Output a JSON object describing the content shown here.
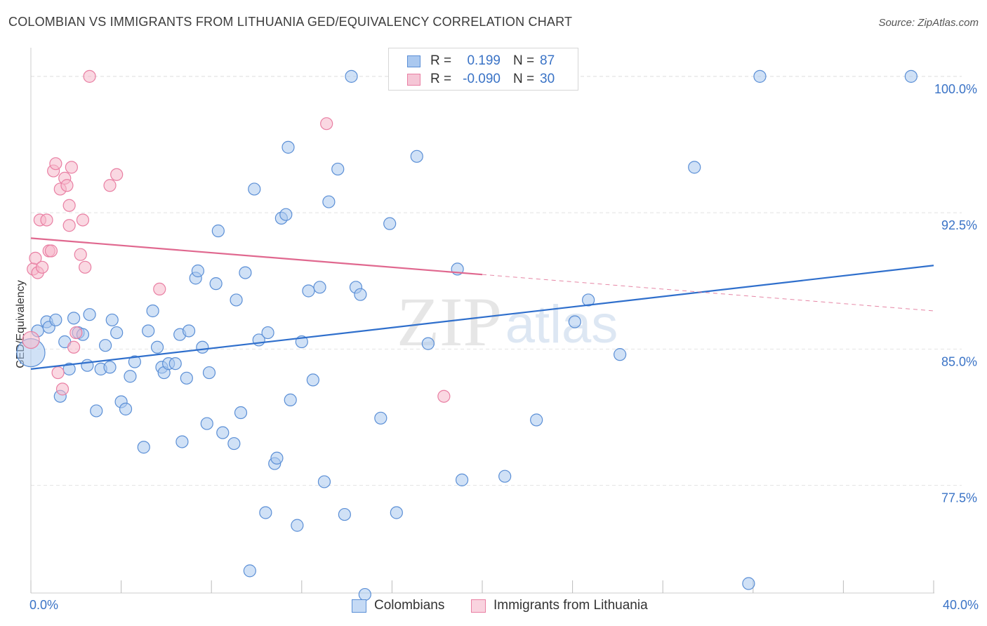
{
  "header": {
    "title": "COLOMBIAN VS IMMIGRANTS FROM LITHUANIA GED/EQUIVALENCY CORRELATION CHART",
    "source": "Source: ZipAtlas.com"
  },
  "legend": {
    "rows": [
      {
        "r_label": "R =",
        "r_value": "0.199",
        "n_label": "N =",
        "n_value": "87"
      },
      {
        "r_label": "R =",
        "r_value": "-0.090",
        "n_label": "N =",
        "n_value": "30"
      }
    ]
  },
  "watermark": {
    "zip": "ZIP",
    "atlas": "atlas"
  },
  "colors": {
    "blue_fill": "#aac8ef",
    "blue_stroke": "#5b8fd6",
    "blue_line": "#2f6fcc",
    "pink_fill": "#f5b8cb",
    "pink_stroke": "#e97fa3",
    "pink_line": "#e0688f",
    "tick_text": "#3a73c6",
    "grid": "#e2e2e2"
  },
  "chart_data": {
    "type": "scatter",
    "title": "COLOMBIAN VS IMMIGRANTS FROM LITHUANIA GED/EQUIVALENCY CORRELATION CHART",
    "xlabel": "",
    "ylabel": "GED/Equivalency",
    "xlim": [
      0,
      40
    ],
    "ylim": [
      71,
      101.5
    ],
    "x_tick_labels": [
      "0.0%",
      "40.0%"
    ],
    "y_ticks": [
      77.5,
      85.0,
      92.5,
      100.0
    ],
    "y_tick_labels": [
      "77.5%",
      "85.0%",
      "92.5%",
      "100.0%"
    ],
    "grid": true,
    "legend_position": "top-center",
    "series": [
      {
        "name": "Colombians",
        "color": "#aac8ef",
        "trend": {
          "x": [
            0,
            40
          ],
          "y": [
            83.9,
            89.6
          ],
          "dashed_from": null
        },
        "points": [
          [
            0.0,
            84.8
          ],
          [
            0.3,
            86.0
          ],
          [
            0.7,
            86.5
          ],
          [
            0.8,
            86.2
          ],
          [
            1.1,
            86.6
          ],
          [
            1.3,
            82.4
          ],
          [
            1.5,
            85.4
          ],
          [
            1.7,
            83.9
          ],
          [
            1.9,
            86.7
          ],
          [
            2.1,
            85.9
          ],
          [
            2.3,
            85.8
          ],
          [
            2.5,
            84.1
          ],
          [
            2.6,
            86.9
          ],
          [
            2.9,
            81.6
          ],
          [
            3.1,
            83.9
          ],
          [
            3.3,
            85.2
          ],
          [
            3.5,
            84.0
          ],
          [
            3.6,
            86.6
          ],
          [
            3.8,
            85.9
          ],
          [
            4.0,
            82.1
          ],
          [
            4.2,
            81.7
          ],
          [
            4.4,
            83.5
          ],
          [
            4.6,
            84.3
          ],
          [
            5.0,
            79.6
          ],
          [
            5.2,
            86.0
          ],
          [
            5.4,
            87.1
          ],
          [
            5.6,
            85.1
          ],
          [
            5.8,
            84.0
          ],
          [
            5.9,
            83.7
          ],
          [
            6.1,
            84.2
          ],
          [
            6.4,
            84.2
          ],
          [
            6.6,
            85.8
          ],
          [
            6.7,
            79.9
          ],
          [
            6.9,
            83.4
          ],
          [
            7.0,
            86.0
          ],
          [
            7.3,
            88.9
          ],
          [
            7.4,
            89.3
          ],
          [
            7.6,
            85.1
          ],
          [
            7.8,
            80.9
          ],
          [
            7.9,
            83.7
          ],
          [
            8.2,
            88.6
          ],
          [
            8.3,
            91.5
          ],
          [
            8.5,
            80.4
          ],
          [
            9.0,
            79.8
          ],
          [
            9.1,
            87.7
          ],
          [
            9.3,
            81.5
          ],
          [
            9.5,
            89.2
          ],
          [
            9.7,
            72.8
          ],
          [
            9.9,
            93.8
          ],
          [
            10.1,
            85.5
          ],
          [
            10.4,
            76.0
          ],
          [
            10.5,
            85.9
          ],
          [
            10.8,
            78.7
          ],
          [
            10.9,
            79.0
          ],
          [
            11.1,
            92.2
          ],
          [
            11.3,
            92.4
          ],
          [
            11.4,
            96.1
          ],
          [
            11.5,
            82.2
          ],
          [
            11.8,
            75.3
          ],
          [
            12.0,
            85.4
          ],
          [
            12.3,
            88.2
          ],
          [
            12.5,
            83.3
          ],
          [
            12.8,
            88.4
          ],
          [
            13.0,
            77.7
          ],
          [
            13.2,
            93.1
          ],
          [
            13.6,
            94.9
          ],
          [
            13.9,
            75.9
          ],
          [
            14.2,
            100.0
          ],
          [
            14.4,
            88.4
          ],
          [
            14.6,
            88.0
          ],
          [
            14.8,
            71.5
          ],
          [
            15.5,
            81.2
          ],
          [
            15.9,
            91.9
          ],
          [
            16.2,
            76.0
          ],
          [
            17.1,
            95.6
          ],
          [
            17.6,
            85.3
          ],
          [
            18.9,
            89.4
          ],
          [
            19.1,
            77.8
          ],
          [
            21.0,
            78.0
          ],
          [
            22.4,
            81.1
          ],
          [
            24.1,
            86.5
          ],
          [
            24.7,
            87.7
          ],
          [
            26.1,
            84.7
          ],
          [
            29.4,
            95.0
          ],
          [
            31.8,
            72.1
          ],
          [
            32.3,
            100.0
          ],
          [
            39.0,
            100.0
          ]
        ]
      },
      {
        "name": "Immigrants from Lithuania",
        "color": "#f5b8cb",
        "trend": {
          "x": [
            0,
            40
          ],
          "y": [
            91.1,
            87.1
          ],
          "dashed_from": 20.0
        },
        "points": [
          [
            0.0,
            85.5
          ],
          [
            0.1,
            89.4
          ],
          [
            0.2,
            90.0
          ],
          [
            0.3,
            89.2
          ],
          [
            0.4,
            92.1
          ],
          [
            0.5,
            89.5
          ],
          [
            0.7,
            92.1
          ],
          [
            0.8,
            90.4
          ],
          [
            0.9,
            90.4
          ],
          [
            1.0,
            94.8
          ],
          [
            1.1,
            95.2
          ],
          [
            1.2,
            83.7
          ],
          [
            1.3,
            93.8
          ],
          [
            1.4,
            82.8
          ],
          [
            1.5,
            94.4
          ],
          [
            1.6,
            94.0
          ],
          [
            1.7,
            92.9
          ],
          [
            1.7,
            91.8
          ],
          [
            1.8,
            95.0
          ],
          [
            1.9,
            85.1
          ],
          [
            2.0,
            85.9
          ],
          [
            2.2,
            90.2
          ],
          [
            2.3,
            92.1
          ],
          [
            2.4,
            89.5
          ],
          [
            2.6,
            100.0
          ],
          [
            3.5,
            94.0
          ],
          [
            3.8,
            94.6
          ],
          [
            5.7,
            88.3
          ],
          [
            13.1,
            97.4
          ],
          [
            18.3,
            82.4
          ]
        ]
      }
    ]
  }
}
